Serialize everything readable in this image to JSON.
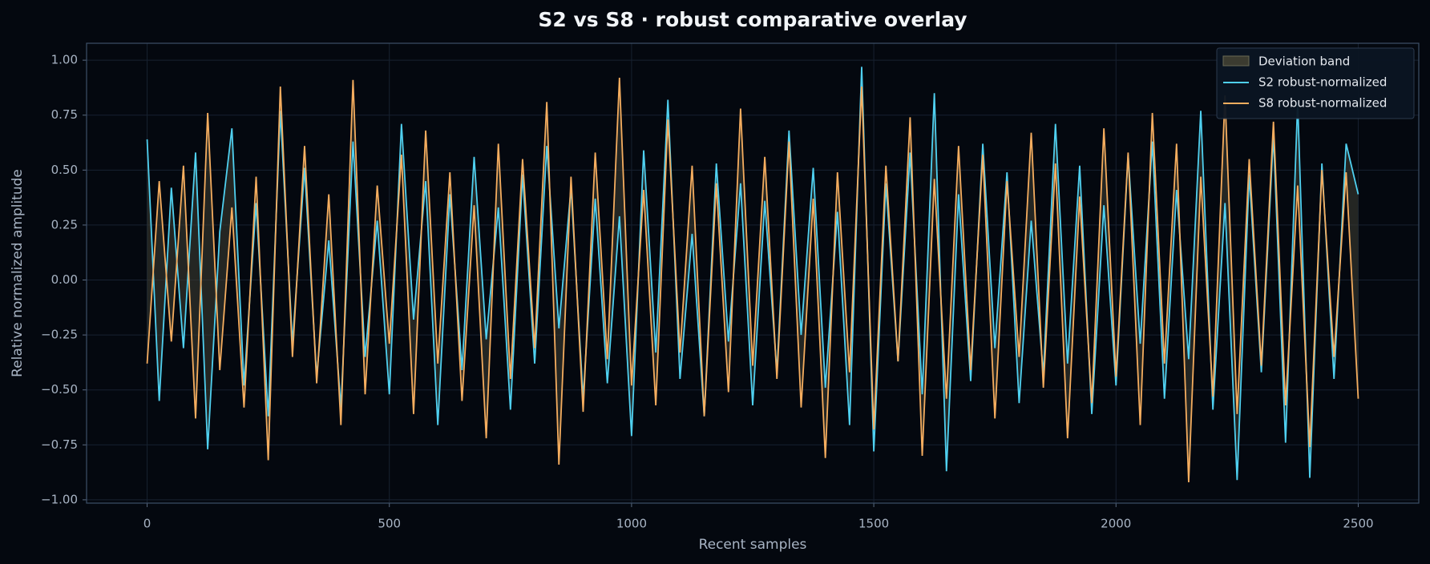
{
  "chart_data": {
    "type": "line",
    "title": "S2 vs S8 · robust comparative overlay",
    "xlabel": "Recent samples",
    "ylabel": "Relative normalized amplitude",
    "x": [
      0,
      25,
      50,
      75,
      100,
      125,
      150,
      175,
      200,
      225,
      250,
      275,
      300,
      325,
      350,
      375,
      400,
      425,
      450,
      475,
      500,
      525,
      550,
      575,
      600,
      625,
      650,
      675,
      700,
      725,
      750,
      775,
      800,
      825,
      850,
      875,
      900,
      925,
      950,
      975,
      1000,
      1025,
      1050,
      1075,
      1100,
      1125,
      1150,
      1175,
      1200,
      1225,
      1250,
      1275,
      1300,
      1325,
      1350,
      1375,
      1400,
      1425,
      1450,
      1475,
      1500,
      1525,
      1550,
      1575,
      1600,
      1625,
      1650,
      1675,
      1700,
      1725,
      1750,
      1775,
      1800,
      1825,
      1850,
      1875,
      1900,
      1925,
      1950,
      1975,
      2000,
      2025,
      2050,
      2075,
      2100,
      2125,
      2150,
      2175,
      2200,
      2225,
      2250,
      2275,
      2300,
      2325,
      2350,
      2375,
      2400,
      2425,
      2450,
      2475,
      2500
    ],
    "band": {
      "name": "Deviation band",
      "color": "#3b3b30"
    },
    "series": [
      {
        "name": "S2 robust-normalized",
        "color": "#4fd0f0",
        "values": [
          0.64,
          -0.55,
          0.42,
          -0.31,
          0.58,
          -0.77,
          0.22,
          0.69,
          -0.48,
          0.35,
          -0.62,
          0.77,
          -0.29,
          0.51,
          -0.44,
          0.18,
          -0.58,
          0.63,
          -0.35,
          0.27,
          -0.52,
          0.71,
          -0.18,
          0.45,
          -0.66,
          0.39,
          -0.41,
          0.56,
          -0.27,
          0.33,
          -0.59,
          0.48,
          -0.38,
          0.61,
          -0.22,
          0.42,
          -0.54,
          0.37,
          -0.47,
          0.29,
          -0.71,
          0.59,
          -0.33,
          0.82,
          -0.45,
          0.21,
          -0.62,
          0.53,
          -0.28,
          0.44,
          -0.57,
          0.36,
          -0.42,
          0.68,
          -0.25,
          0.51,
          -0.49,
          0.31,
          -0.66,
          0.97,
          -0.78,
          0.44,
          -0.37,
          0.58,
          -0.52,
          0.85,
          -0.87,
          0.39,
          -0.46,
          0.62,
          -0.31,
          0.49,
          -0.56,
          0.27,
          -0.43,
          0.71,
          -0.38,
          0.52,
          -0.61,
          0.34,
          -0.48,
          0.57,
          -0.29,
          0.63,
          -0.54,
          0.41,
          -0.36,
          0.77,
          -0.59,
          0.35,
          -0.91,
          0.48,
          -0.42,
          0.66,
          -0.74,
          0.81,
          -0.9,
          0.53,
          -0.45,
          0.62,
          0.39
        ]
      },
      {
        "name": "S8 robust-normalized",
        "color": "#f5ad5f",
        "values": [
          -0.38,
          0.45,
          -0.28,
          0.52,
          -0.63,
          0.76,
          -0.41,
          0.33,
          -0.58,
          0.47,
          -0.82,
          0.88,
          -0.35,
          0.61,
          -0.47,
          0.39,
          -0.66,
          0.91,
          -0.52,
          0.43,
          -0.29,
          0.57,
          -0.61,
          0.68,
          -0.38,
          0.49,
          -0.55,
          0.34,
          -0.72,
          0.62,
          -0.45,
          0.55,
          -0.31,
          0.81,
          -0.84,
          0.47,
          -0.6,
          0.58,
          -0.36,
          0.92,
          -0.48,
          0.41,
          -0.57,
          0.73,
          -0.33,
          0.52,
          -0.62,
          0.44,
          -0.51,
          0.78,
          -0.39,
          0.56,
          -0.45,
          0.63,
          -0.58,
          0.37,
          -0.81,
          0.49,
          -0.42,
          0.88,
          -0.68,
          0.52,
          -0.37,
          0.74,
          -0.8,
          0.46,
          -0.54,
          0.61,
          -0.41,
          0.57,
          -0.63,
          0.45,
          -0.35,
          0.67,
          -0.49,
          0.53,
          -0.72,
          0.38,
          -0.56,
          0.69,
          -0.44,
          0.58,
          -0.66,
          0.76,
          -0.38,
          0.62,
          -0.92,
          0.47,
          -0.53,
          0.84,
          -0.61,
          0.55,
          -0.39,
          0.72,
          -0.57,
          0.43,
          -0.76,
          0.5,
          -0.35,
          0.49,
          -0.54
        ]
      }
    ],
    "xlim": [
      -125,
      2625
    ],
    "ylim": [
      -1.015,
      1.077
    ],
    "xticks": [
      0,
      500,
      1000,
      1500,
      2000,
      2500
    ],
    "yticks": [
      {
        "value": -1,
        "label": "−1.00"
      },
      {
        "value": -0.75,
        "label": "−0.75"
      },
      {
        "value": -0.5,
        "label": "−0.50"
      },
      {
        "value": -0.25,
        "label": "−0.25"
      },
      {
        "value": 0,
        "label": "0.00"
      },
      {
        "value": 0.25,
        "label": "0.25"
      },
      {
        "value": 0.5,
        "label": "0.50"
      },
      {
        "value": 0.75,
        "label": "0.75"
      },
      {
        "value": 1,
        "label": "1.00"
      }
    ],
    "grid": true,
    "legend": "upper right"
  }
}
